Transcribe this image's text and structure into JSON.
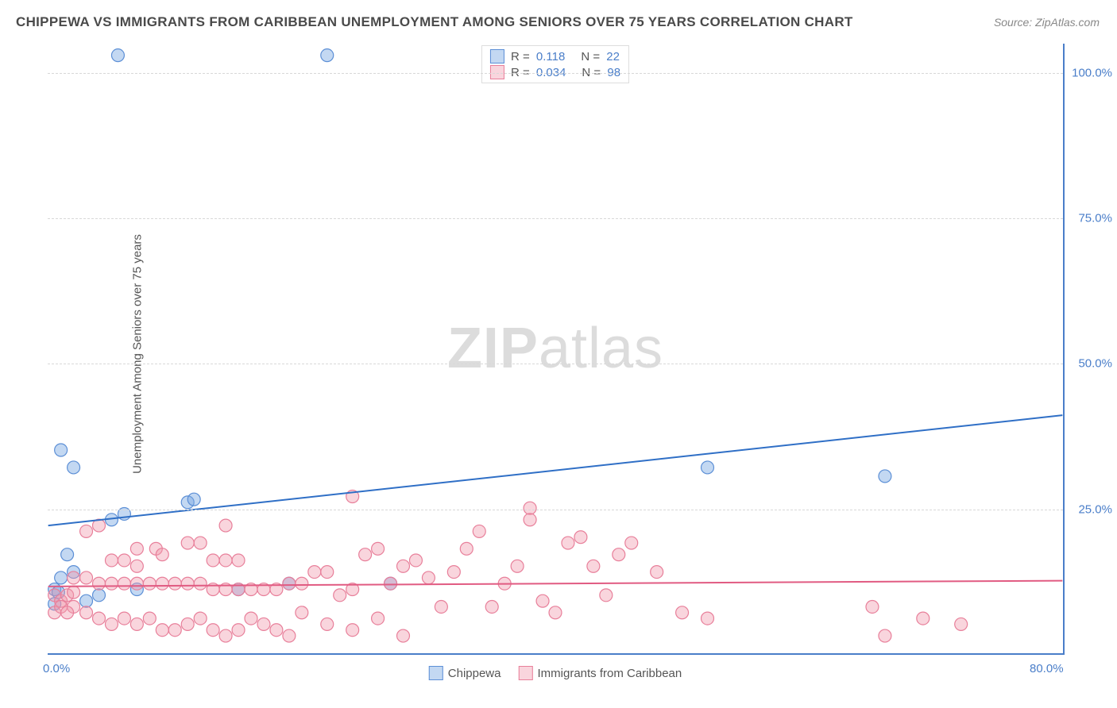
{
  "title": "CHIPPEWA VS IMMIGRANTS FROM CARIBBEAN UNEMPLOYMENT AMONG SENIORS OVER 75 YEARS CORRELATION CHART",
  "source": "Source: ZipAtlas.com",
  "ylabel": "Unemployment Among Seniors over 75 years",
  "watermark_bold": "ZIP",
  "watermark_light": "atlas",
  "chart": {
    "type": "scatter-with-regression",
    "xlim": [
      0,
      80
    ],
    "ylim": [
      0,
      105
    ],
    "xticks": [
      {
        "v": 0,
        "label": "0.0%"
      },
      {
        "v": 80,
        "label": "80.0%"
      }
    ],
    "yticks": [
      {
        "v": 25,
        "label": "25.0%"
      },
      {
        "v": 50,
        "label": "50.0%"
      },
      {
        "v": 75,
        "label": "75.0%"
      },
      {
        "v": 100,
        "label": "100.0%"
      }
    ],
    "grid_color": "#d8d8d8",
    "axis_color": "#4a7ec9",
    "background_color": "#ffffff",
    "label_fontsize": 15,
    "title_fontsize": 17,
    "tick_color": "#4a7ec9",
    "series": [
      {
        "name": "Chippewa",
        "fill": "rgba(122,168,227,0.45)",
        "stroke": "#5c8fd6",
        "line_color": "#2f6fc6",
        "line_width": 2,
        "marker_r": 8,
        "R": 0.118,
        "N": 22,
        "reg": {
          "x1": 0,
          "y1": 22,
          "x2": 80,
          "y2": 41
        },
        "points": [
          [
            5.5,
            103
          ],
          [
            22,
            103
          ],
          [
            1,
            35
          ],
          [
            2,
            32
          ],
          [
            5,
            23
          ],
          [
            6,
            24
          ],
          [
            11,
            26
          ],
          [
            11.5,
            26.5
          ],
          [
            52,
            32
          ],
          [
            66,
            30.5
          ],
          [
            0.5,
            11
          ],
          [
            0.8,
            10.5
          ],
          [
            0.5,
            8.5
          ],
          [
            1,
            13
          ],
          [
            1.5,
            17
          ],
          [
            2,
            14
          ],
          [
            3,
            9
          ],
          [
            4,
            10
          ],
          [
            7,
            11
          ],
          [
            15,
            11
          ],
          [
            19,
            12
          ],
          [
            27,
            12
          ]
        ]
      },
      {
        "name": "Immigrants from Caribbean",
        "fill": "rgba(240,150,170,0.40)",
        "stroke": "#e87f9a",
        "line_color": "#e15b82",
        "line_width": 2,
        "marker_r": 8,
        "R": 0.034,
        "N": 98,
        "reg": {
          "x1": 0,
          "y1": 11.5,
          "x2": 80,
          "y2": 12.5
        },
        "points": [
          [
            24,
            27
          ],
          [
            38,
            25
          ],
          [
            3,
            21
          ],
          [
            4,
            22
          ],
          [
            14,
            22
          ],
          [
            11,
            19
          ],
          [
            12,
            19
          ],
          [
            7,
            18
          ],
          [
            8.5,
            18
          ],
          [
            9,
            17
          ],
          [
            5,
            16
          ],
          [
            6,
            16
          ],
          [
            7,
            15
          ],
          [
            13,
            16
          ],
          [
            14,
            16
          ],
          [
            15,
            16
          ],
          [
            2,
            13
          ],
          [
            3,
            13
          ],
          [
            4,
            12
          ],
          [
            5,
            12
          ],
          [
            6,
            12
          ],
          [
            7,
            12
          ],
          [
            8,
            12
          ],
          [
            9,
            12
          ],
          [
            10,
            12
          ],
          [
            11,
            12
          ],
          [
            12,
            12
          ],
          [
            13,
            11
          ],
          [
            14,
            11
          ],
          [
            15,
            11
          ],
          [
            16,
            11
          ],
          [
            17,
            11
          ],
          [
            18,
            11
          ],
          [
            19,
            12
          ],
          [
            20,
            12
          ],
          [
            21,
            14
          ],
          [
            22,
            14
          ],
          [
            23,
            10
          ],
          [
            24,
            11
          ],
          [
            25,
            17
          ],
          [
            26,
            18
          ],
          [
            27,
            12
          ],
          [
            28,
            15
          ],
          [
            29,
            16
          ],
          [
            30,
            13
          ],
          [
            31,
            8
          ],
          [
            32,
            14
          ],
          [
            33,
            18
          ],
          [
            34,
            21
          ],
          [
            35,
            8
          ],
          [
            36,
            12
          ],
          [
            37,
            15
          ],
          [
            38,
            23
          ],
          [
            39,
            9
          ],
          [
            40,
            7
          ],
          [
            41,
            19
          ],
          [
            42,
            20
          ],
          [
            43,
            15
          ],
          [
            44,
            10
          ],
          [
            45,
            17
          ],
          [
            46,
            19
          ],
          [
            48,
            14
          ],
          [
            50,
            7
          ],
          [
            52,
            6
          ],
          [
            65,
            8
          ],
          [
            66,
            3
          ],
          [
            69,
            6
          ],
          [
            72,
            5
          ],
          [
            2,
            8
          ],
          [
            3,
            7
          ],
          [
            4,
            6
          ],
          [
            5,
            5
          ],
          [
            6,
            6
          ],
          [
            7,
            5
          ],
          [
            8,
            6
          ],
          [
            9,
            4
          ],
          [
            10,
            4
          ],
          [
            11,
            5
          ],
          [
            12,
            6
          ],
          [
            13,
            4
          ],
          [
            14,
            3
          ],
          [
            15,
            4
          ],
          [
            16,
            6
          ],
          [
            17,
            5
          ],
          [
            18,
            4
          ],
          [
            19,
            3
          ],
          [
            20,
            7
          ],
          [
            22,
            5
          ],
          [
            24,
            4
          ],
          [
            26,
            6
          ],
          [
            28,
            3
          ],
          [
            0.5,
            10
          ],
          [
            1,
            9
          ],
          [
            1.5,
            10
          ],
          [
            2,
            10.5
          ],
          [
            0.5,
            7
          ],
          [
            1,
            8
          ],
          [
            1.5,
            7
          ]
        ]
      }
    ]
  },
  "legend_top_label_R": "R =",
  "legend_top_label_N": "N =",
  "legend_bottom": [
    {
      "label": "Chippewa",
      "fill": "rgba(122,168,227,0.45)",
      "stroke": "#5c8fd6"
    },
    {
      "label": "Immigrants from Caribbean",
      "fill": "rgba(240,150,170,0.40)",
      "stroke": "#e87f9a"
    }
  ]
}
